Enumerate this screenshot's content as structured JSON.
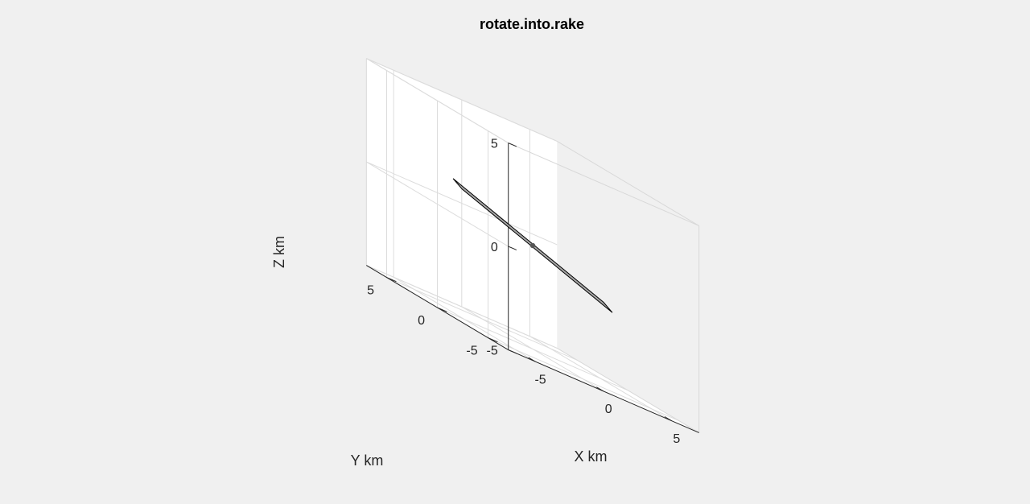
{
  "chart_data": {
    "type": "3d-surface",
    "title": "rotate.into.rake",
    "xlabel": "X km",
    "ylabel": "Y km",
    "zlabel": "Z km",
    "xlim": [
      -7,
      7
    ],
    "ylim": [
      -7,
      7
    ],
    "zlim": [
      -5,
      5
    ],
    "xticks": [
      -5,
      0,
      5
    ],
    "yticks": [
      -5,
      0,
      5
    ],
    "zticks": [
      -5,
      0,
      5
    ],
    "grid": true,
    "view": {
      "azimuth": -37.5,
      "elevation": 30
    },
    "patch": {
      "name": "fault-plane",
      "color": "#a6a6a6",
      "edge_color": "#000000",
      "vertices": [
        {
          "x": -3.95,
          "y": 1.68,
          "z": 1.12
        },
        {
          "x": -3.42,
          "y": 3.26,
          "z": 1.31
        },
        {
          "x": 3.95,
          "y": -1.68,
          "z": -1.12
        },
        {
          "x": 3.42,
          "y": -3.26,
          "z": -1.31
        }
      ]
    },
    "point": {
      "name": "hypocenter",
      "x": 0,
      "y": 0,
      "z": 0,
      "color": "#555555"
    }
  }
}
